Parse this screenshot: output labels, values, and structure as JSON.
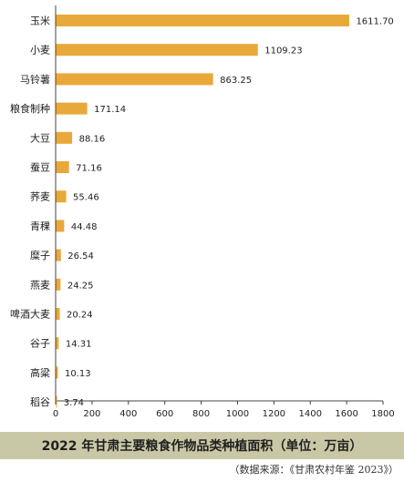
{
  "chart_data": {
    "type": "bar",
    "orientation": "horizontal",
    "title": "2022 年甘肃主要粮食作物品类种植面积（单位：万亩）",
    "categories": [
      "玉米",
      "小麦",
      "马铃薯",
      "粮食制种",
      "大豆",
      "蚕豆",
      "荞麦",
      "青稞",
      "糜子",
      "燕麦",
      "啤酒大麦",
      "谷子",
      "高粱",
      "稻谷"
    ],
    "values": [
      1611.7,
      1109.23,
      863.25,
      171.14,
      88.16,
      71.16,
      55.46,
      44.48,
      26.54,
      24.25,
      20.24,
      14.31,
      10.13,
      3.74
    ],
    "value_labels": [
      "1611.70",
      "1109.23",
      "863.25",
      "171.14",
      "88.16",
      "71.16",
      "55.46",
      "44.48",
      "26.54",
      "24.25",
      "20.24",
      "14.31",
      "10.13",
      "3.74"
    ],
    "xlim": [
      0,
      1800
    ],
    "xticks": [
      0,
      200,
      400,
      600,
      800,
      1000,
      1200,
      1400,
      1600,
      1800
    ],
    "grid": false,
    "bar_color": "#e8a93a"
  },
  "source_text": "（数据来源：《甘肃农村年鉴 2023》）"
}
